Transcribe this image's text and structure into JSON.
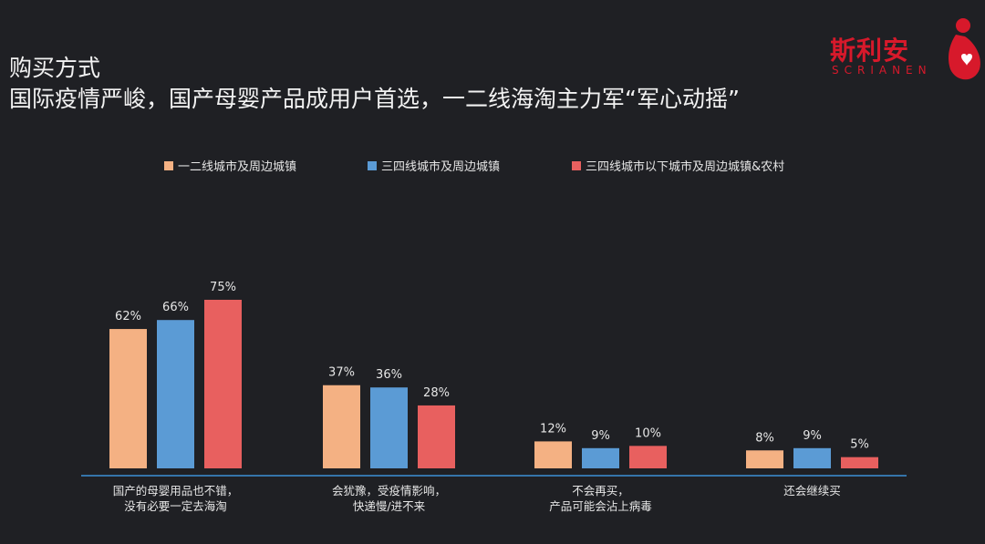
{
  "header": {
    "line1": "购买方式",
    "line2": "国际疫情严峻，国产母婴产品成用户首选，一二线海淘主力军“军心动摇”"
  },
  "logo": {
    "text": "斯利安",
    "sub": "SCRIANEN"
  },
  "colors": {
    "background": "#1f2024",
    "series1": "#f4b183",
    "series2": "#5b9bd5",
    "series3": "#e8605f",
    "axis": "#3d8fd6",
    "logo": "#d7192b"
  },
  "chart_data": {
    "type": "bar",
    "categories": [
      [
        "国产的母婴用品也不错，",
        "没有必要一定去海淘"
      ],
      [
        "会犹豫，受疫情影响，",
        "快递慢/进不来"
      ],
      [
        "不会再买，",
        "产品可能会沾上病毒"
      ],
      [
        "还会继续买"
      ]
    ],
    "series": [
      {
        "name": "一二线城市及周边城镇",
        "values": [
          62,
          37,
          12,
          8
        ]
      },
      {
        "name": "三四线城市及周边城镇",
        "values": [
          66,
          36,
          9,
          9
        ]
      },
      {
        "name": "三四线城市以下城市及周边城镇&农村",
        "values": [
          75,
          28,
          10,
          5
        ]
      }
    ],
    "value_suffix": "%",
    "ylim": [
      0,
      100
    ],
    "grid": false,
    "legend_position": "top"
  }
}
